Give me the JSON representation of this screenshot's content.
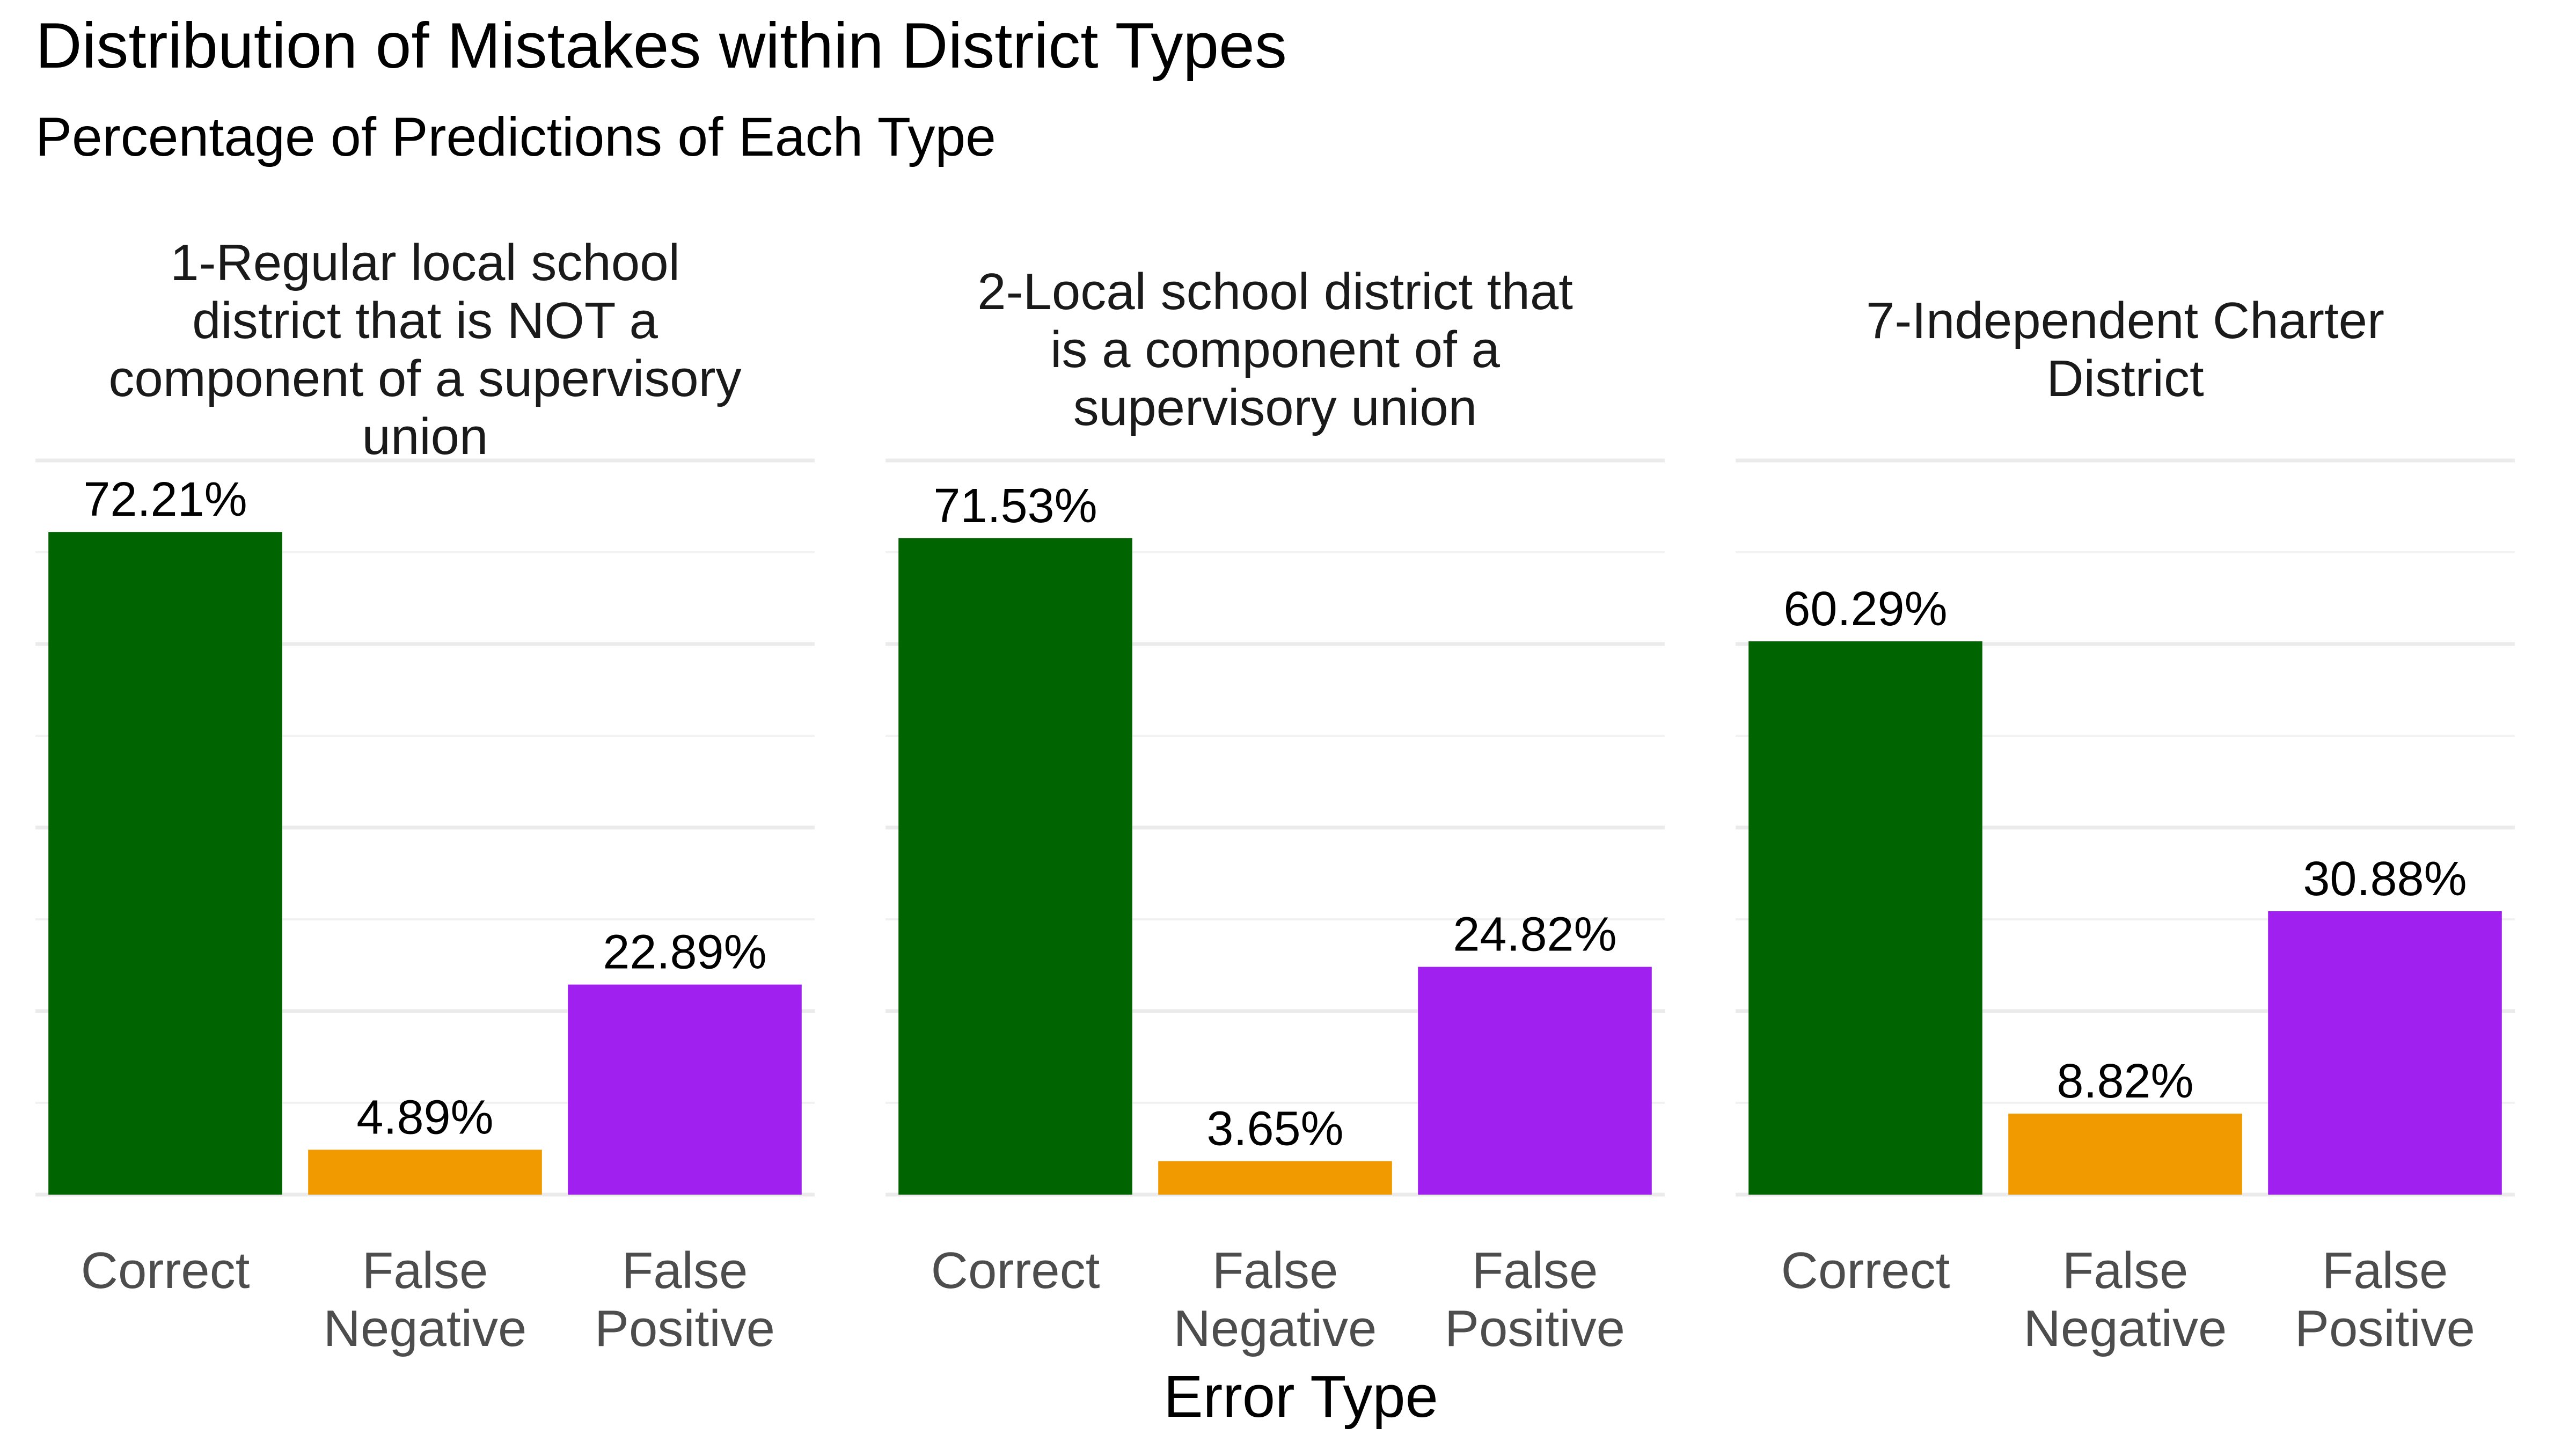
{
  "title": "Distribution of Mistakes within District Types",
  "subtitle": "Percentage of Predictions of Each Type",
  "chart_data": {
    "type": "bar",
    "title": "Distribution of Mistakes within District Types",
    "subtitle": "Percentage of Predictions of Each Type",
    "xlabel": "Error Type",
    "ylabel": "",
    "ylim": [
      0,
      80
    ],
    "grid": true,
    "legend": "none",
    "categories": [
      [
        "Correct"
      ],
      [
        "False",
        "Negative"
      ],
      [
        "False",
        "Positive"
      ]
    ],
    "colors": [
      "#006400",
      "#F09A00",
      "#A020F0"
    ],
    "facets": [
      {
        "title_lines": [
          "1-Regular local school",
          "district that is NOT a",
          "component of a supervisory",
          "union"
        ],
        "values": [
          72.21,
          4.89,
          22.89
        ],
        "labels": [
          "72.21%",
          "4.89%",
          "22.89%"
        ]
      },
      {
        "title_lines": [
          "2-Local school district that",
          "is a component of a",
          "supervisory union"
        ],
        "values": [
          71.53,
          3.65,
          24.82
        ],
        "labels": [
          "71.53%",
          "3.65%",
          "24.82%"
        ]
      },
      {
        "title_lines": [
          "7-Independent Charter",
          "District"
        ],
        "values": [
          60.29,
          8.82,
          30.88
        ],
        "labels": [
          "60.29%",
          "8.82%",
          "30.88%"
        ]
      }
    ]
  }
}
